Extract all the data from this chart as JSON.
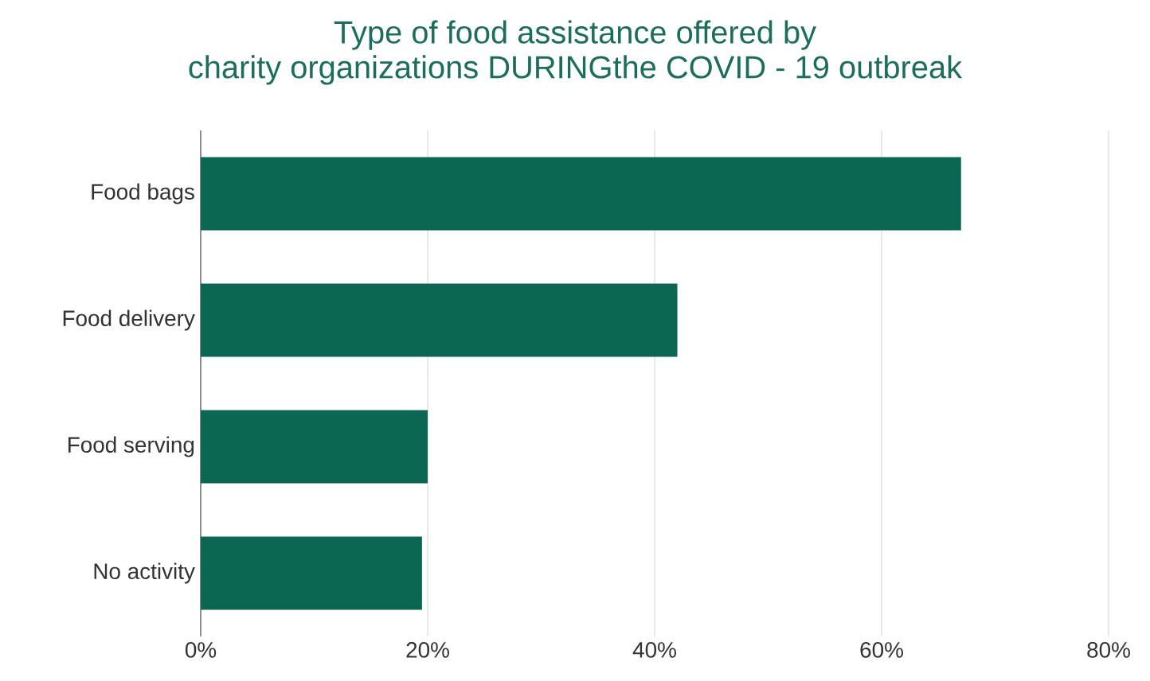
{
  "chart_data": {
    "type": "bar",
    "orientation": "horizontal",
    "title": "Type of food assistance offered by\ncharity organizations DURINGthe COVID - 19 outbreak",
    "categories": [
      "Food bags",
      "Food delivery",
      "Food serving",
      "No activity"
    ],
    "values": [
      67,
      42,
      20,
      19.5
    ],
    "color": "#0b6652",
    "xlim": [
      0,
      80
    ],
    "xticks": [
      {
        "value": 0,
        "label": "0%"
      },
      {
        "value": 20,
        "label": "20%"
      },
      {
        "value": 40,
        "label": "40%"
      },
      {
        "value": 60,
        "label": "60%"
      },
      {
        "value": 80,
        "label": "80%"
      }
    ],
    "grid": "x"
  }
}
